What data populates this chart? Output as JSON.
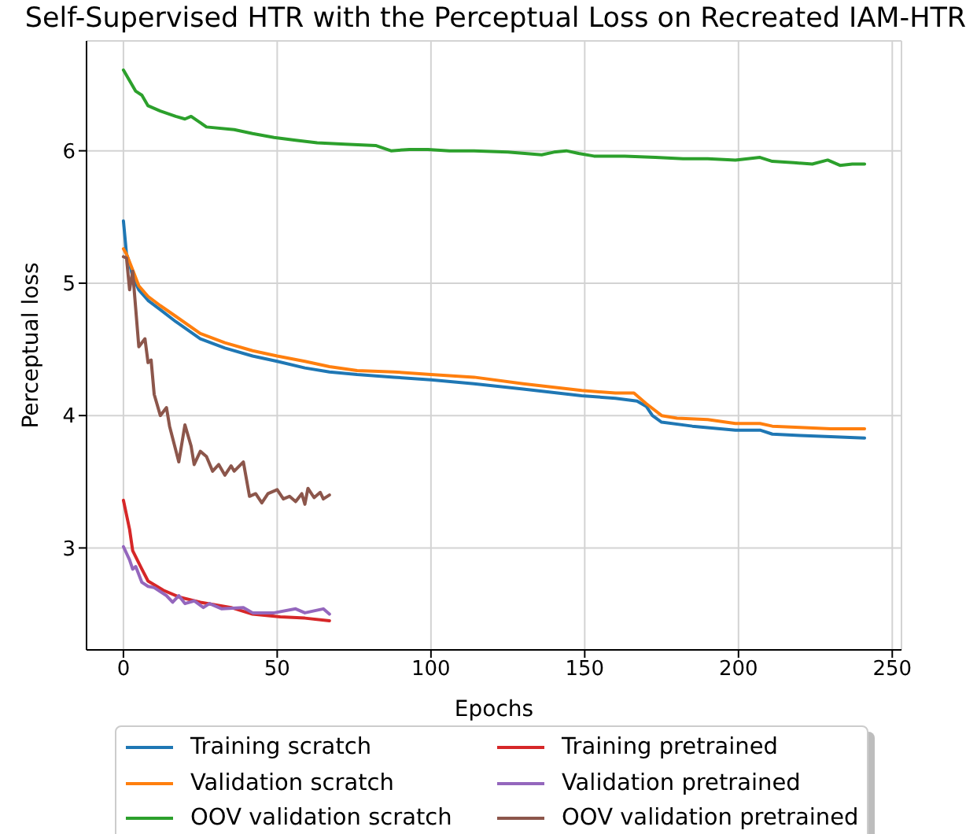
{
  "chart_data": {
    "type": "line",
    "title": "Self-Supervised HTR with the Perceptual Loss on Recreated IAM-HTR",
    "xlabel": "Epochs",
    "ylabel": "Perceptual loss",
    "xlim": [
      -12,
      253
    ],
    "xticks": [
      0,
      50,
      100,
      150,
      200,
      250
    ],
    "ylim": [
      2.23,
      6.83
    ],
    "yticks": [
      3,
      4,
      5,
      6
    ],
    "grid": true,
    "legend": "bottom",
    "series": [
      {
        "name": "Training scratch",
        "color": "#1f77b4",
        "x": [
          0,
          1,
          2,
          3,
          5,
          8,
          12,
          17,
          25,
          33,
          42,
          50,
          59,
          67,
          76,
          88,
          100,
          114,
          130,
          149,
          160,
          167,
          170,
          172,
          175,
          185,
          199,
          207,
          211,
          220,
          230,
          241
        ],
        "values": [
          5.47,
          5.22,
          5.15,
          5.05,
          4.95,
          4.87,
          4.8,
          4.71,
          4.58,
          4.51,
          4.45,
          4.41,
          4.36,
          4.33,
          4.31,
          4.29,
          4.27,
          4.24,
          4.2,
          4.15,
          4.13,
          4.11,
          4.07,
          4.0,
          3.95,
          3.92,
          3.89,
          3.89,
          3.86,
          3.85,
          3.84,
          3.83
        ]
      },
      {
        "name": "Validation scratch",
        "color": "#ff7f0e",
        "x": [
          0,
          1,
          3,
          5,
          8,
          12,
          17,
          25,
          33,
          42,
          50,
          59,
          67,
          76,
          88,
          100,
          114,
          130,
          149,
          160,
          166,
          170,
          175,
          180,
          190,
          199,
          207,
          211,
          220,
          230,
          241
        ],
        "values": [
          5.26,
          5.22,
          5.1,
          4.98,
          4.9,
          4.83,
          4.75,
          4.62,
          4.55,
          4.49,
          4.45,
          4.41,
          4.37,
          4.34,
          4.33,
          4.31,
          4.29,
          4.24,
          4.19,
          4.17,
          4.17,
          4.09,
          4.0,
          3.98,
          3.97,
          3.94,
          3.94,
          3.92,
          3.91,
          3.9,
          3.9
        ]
      },
      {
        "name": "OOV validation scratch",
        "color": "#2ca02c",
        "x": [
          0,
          2,
          4,
          6,
          8,
          12,
          17,
          20,
          22,
          27,
          36,
          42,
          49,
          56,
          63,
          72,
          82,
          87,
          93,
          99,
          106,
          114,
          125,
          136,
          140,
          144,
          148,
          153,
          163,
          173,
          182,
          190,
          199,
          207,
          211,
          218,
          224,
          229,
          233,
          237,
          241
        ],
        "values": [
          6.61,
          6.53,
          6.45,
          6.42,
          6.34,
          6.3,
          6.26,
          6.24,
          6.26,
          6.18,
          6.16,
          6.13,
          6.1,
          6.08,
          6.06,
          6.05,
          6.04,
          6.0,
          6.01,
          6.01,
          6.0,
          6.0,
          5.99,
          5.97,
          5.99,
          6.0,
          5.98,
          5.96,
          5.96,
          5.95,
          5.94,
          5.94,
          5.93,
          5.95,
          5.92,
          5.91,
          5.9,
          5.93,
          5.89,
          5.9,
          5.9
        ]
      },
      {
        "name": "Training pretrained",
        "color": "#d62728",
        "x": [
          0,
          2,
          3,
          6,
          8,
          13,
          18,
          25,
          35,
          42,
          51,
          59,
          67
        ],
        "values": [
          3.36,
          3.14,
          2.98,
          2.84,
          2.75,
          2.68,
          2.63,
          2.59,
          2.55,
          2.5,
          2.48,
          2.47,
          2.45
        ]
      },
      {
        "name": "Validation pretrained",
        "color": "#9467bd",
        "x": [
          0,
          2,
          3,
          4,
          6,
          8,
          10,
          14,
          16,
          18,
          20,
          23,
          26,
          28,
          32,
          39,
          42,
          49,
          56,
          59,
          65,
          67
        ],
        "values": [
          3.01,
          2.91,
          2.84,
          2.86,
          2.74,
          2.71,
          2.7,
          2.64,
          2.59,
          2.64,
          2.58,
          2.6,
          2.55,
          2.58,
          2.54,
          2.55,
          2.51,
          2.51,
          2.54,
          2.51,
          2.54,
          2.5
        ]
      },
      {
        "name": "OOV validation pretrained",
        "color": "#8c564b",
        "x": [
          0,
          1,
          2,
          3,
          5,
          7,
          8,
          9,
          10,
          12,
          14,
          15,
          18,
          20,
          22,
          23,
          25,
          27,
          29,
          31,
          33,
          35,
          36,
          39,
          41,
          43,
          45,
          47,
          50,
          52,
          54,
          56,
          58,
          59,
          60,
          62,
          64,
          65,
          67
        ],
        "values": [
          5.2,
          5.19,
          4.95,
          5.09,
          4.52,
          4.58,
          4.4,
          4.42,
          4.16,
          4.0,
          4.06,
          3.92,
          3.65,
          3.93,
          3.77,
          3.63,
          3.73,
          3.69,
          3.58,
          3.63,
          3.55,
          3.62,
          3.58,
          3.65,
          3.39,
          3.41,
          3.34,
          3.41,
          3.44,
          3.37,
          3.39,
          3.35,
          3.41,
          3.33,
          3.45,
          3.38,
          3.42,
          3.37,
          3.4
        ]
      }
    ]
  }
}
